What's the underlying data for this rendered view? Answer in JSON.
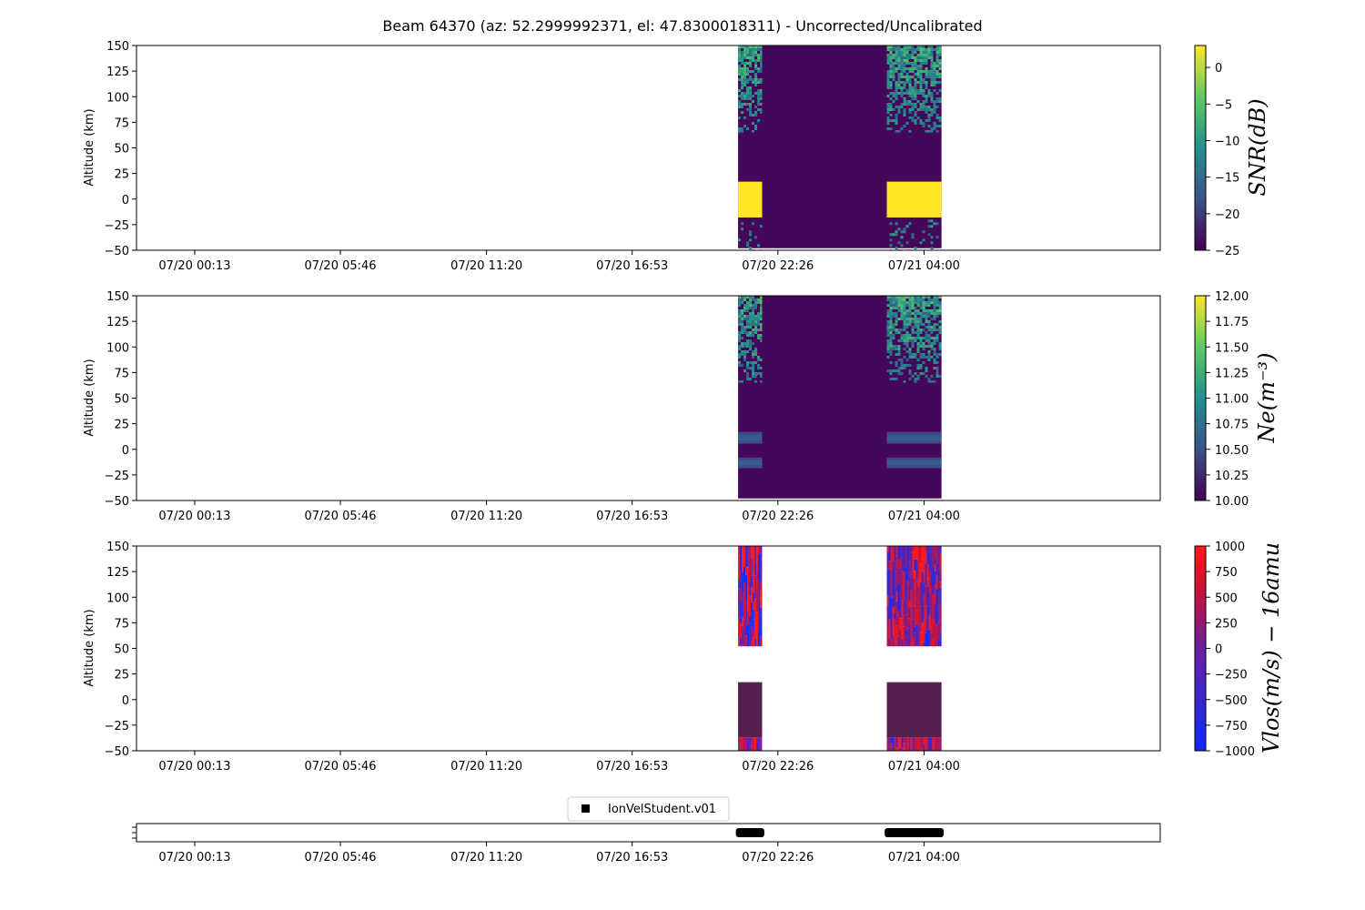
{
  "title": "Beam 64370 (az: 52.2999992371, el: 47.8300018311) - Uncorrected/Uncalibrated",
  "colors": {
    "snr_cmap": [
      "#440154",
      "#3b528b",
      "#21918c",
      "#5ec962",
      "#fde725"
    ],
    "vlos_cmap": [
      "#0a2bff",
      "#6a1fa0",
      "#d01030",
      "#ff1a1a"
    ],
    "masked_fill": "#45075a",
    "vlos_zero": "#552050",
    "marker": "#000000"
  },
  "chart_data": [
    {
      "type": "heatmap",
      "panel": "snr",
      "xlabel": "",
      "ylabel": "Altitude (km)",
      "ylim": [
        -50,
        150
      ],
      "yticks": [
        "150",
        "125",
        "100",
        "75",
        "50",
        "25",
        "0",
        "−25",
        "−50"
      ],
      "xlim": [
        "07/19 22:00",
        "07/21 13:00"
      ],
      "xticks": [
        "07/20 00:13",
        "07/20 05:46",
        "07/20 11:20",
        "07/20 16:53",
        "07/20 22:26",
        "07/21 04:00"
      ],
      "data_windows": [
        {
          "start": "07/20 20:55",
          "end": "07/20 21:50",
          "valid_altitude_km": [
            [
              65,
              150
            ],
            [
              -50,
              -20
            ]
          ],
          "saturated_altitude_km": [
            -18,
            17
          ]
        },
        {
          "start": "07/20 21:50",
          "end": "07/21 02:35",
          "valid_altitude_km": [],
          "saturated_altitude_km": null
        },
        {
          "start": "07/21 02:35",
          "end": "07/21 04:40",
          "valid_altitude_km": [
            [
              65,
              150
            ],
            [
              -50,
              -20
            ]
          ],
          "saturated_altitude_km": [
            -18,
            17
          ]
        }
      ],
      "colorbar": {
        "label": "SNR(dB)",
        "range": [
          -25,
          3
        ],
        "ticks": [
          "0",
          "−5",
          "−10",
          "−15",
          "−20",
          "−25"
        ],
        "tick_values": [
          0,
          -5,
          -10,
          -15,
          -20,
          -25
        ]
      }
    },
    {
      "type": "heatmap",
      "panel": "ne",
      "xlabel": "",
      "ylabel": "Altitude (km)",
      "ylim": [
        -50,
        150
      ],
      "yticks": [
        "150",
        "125",
        "100",
        "75",
        "50",
        "25",
        "0",
        "−25",
        "−50"
      ],
      "xlim": [
        "07/19 22:00",
        "07/21 13:00"
      ],
      "xticks": [
        "07/20 00:13",
        "07/20 05:46",
        "07/20 11:20",
        "07/20 16:53",
        "07/20 22:26",
        "07/21 04:00"
      ],
      "data_windows": [
        {
          "start": "07/20 20:55",
          "end": "07/20 21:50",
          "valid_altitude_km": [
            [
              65,
              150
            ]
          ],
          "band_altitude_km": [
            [
              6,
              17
            ],
            [
              -18,
              -8
            ]
          ]
        },
        {
          "start": "07/21 02:35",
          "end": "07/21 04:40",
          "valid_altitude_km": [
            [
              65,
              150
            ]
          ],
          "band_altitude_km": [
            [
              6,
              17
            ],
            [
              -18,
              -8
            ]
          ]
        }
      ],
      "colorbar": {
        "label": "Ne(m⁻³)",
        "range": [
          10,
          12
        ],
        "ticks": [
          "12.00",
          "11.75",
          "11.50",
          "11.25",
          "11.00",
          "10.75",
          "10.50",
          "10.25",
          "10.00"
        ],
        "tick_values": [
          12,
          11.75,
          11.5,
          11.25,
          11,
          10.75,
          10.5,
          10.25,
          10
        ]
      }
    },
    {
      "type": "heatmap",
      "panel": "vlos",
      "xlabel": "",
      "ylabel": "Altitude (km)",
      "ylim": [
        -50,
        150
      ],
      "yticks": [
        "150",
        "125",
        "100",
        "75",
        "50",
        "25",
        "0",
        "−25",
        "−50"
      ],
      "xlim": [
        "07/19 22:00",
        "07/21 13:00"
      ],
      "xticks": [
        "07/20 00:13",
        "07/20 05:46",
        "07/20 11:20",
        "07/20 16:53",
        "07/20 22:26",
        "07/21 04:00"
      ],
      "data_windows": [
        {
          "start": "07/20 20:55",
          "end": "07/20 21:50",
          "striped_altitude_km": [
            [
              52,
              150
            ],
            [
              -50,
              -37
            ]
          ],
          "flat_altitude_km": [
            -37,
            17
          ]
        },
        {
          "start": "07/21 02:35",
          "end": "07/21 04:40",
          "striped_altitude_km": [
            [
              52,
              150
            ],
            [
              -50,
              -37
            ]
          ],
          "flat_altitude_km": [
            -37,
            17
          ]
        }
      ],
      "colorbar": {
        "label": "Vlos(m/s) − 16amu",
        "range": [
          -1000,
          1000
        ],
        "ticks": [
          "1000",
          "750",
          "500",
          "250",
          "0",
          "−250",
          "−500",
          "−750",
          "−1000"
        ],
        "tick_values": [
          1000,
          750,
          500,
          250,
          0,
          -250,
          -500,
          -750,
          -1000
        ]
      }
    },
    {
      "type": "scatter",
      "panel": "timeline",
      "xlim": [
        "07/19 22:00",
        "07/21 13:00"
      ],
      "xticks": [
        "07/20 00:13",
        "07/20 05:46",
        "07/20 11:20",
        "07/20 16:53",
        "07/20 22:26",
        "07/21 04:00"
      ],
      "series": [
        {
          "name": "IonVelStudent.v01",
          "segments": [
            [
              "07/20 20:50",
              "07/20 21:55"
            ],
            [
              "07/21 02:30",
              "07/21 04:45"
            ]
          ]
        }
      ],
      "legend": "top-center"
    }
  ]
}
